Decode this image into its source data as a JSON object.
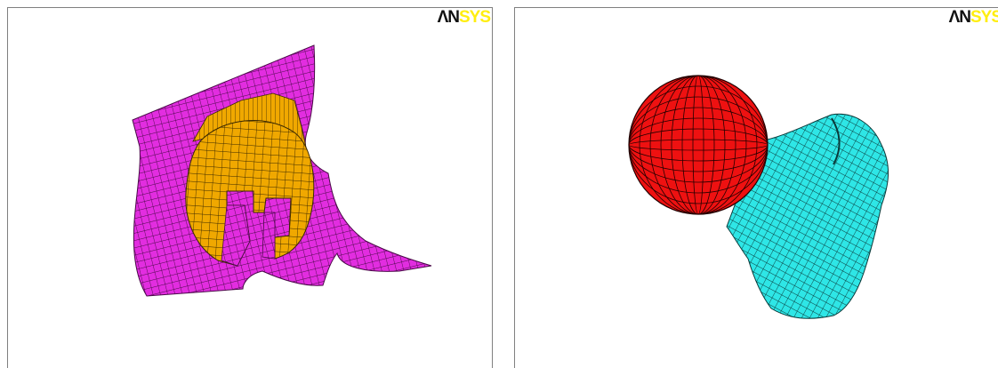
{
  "panels": [
    {
      "logo": {
        "part1": "ΛN",
        "part2": "SYS"
      },
      "colors": {
        "shell": "#e22de0",
        "shell_line": "#4a0a48",
        "core": "#f0a800",
        "core_line": "#3a2800"
      }
    },
    {
      "logo": {
        "part1": "ΛN",
        "part2": "SYS"
      },
      "colors": {
        "ball": "#ee1111",
        "ball_line": "#220000",
        "body": "#2ee6e6",
        "body_line": "#0a3a3a"
      }
    }
  ]
}
